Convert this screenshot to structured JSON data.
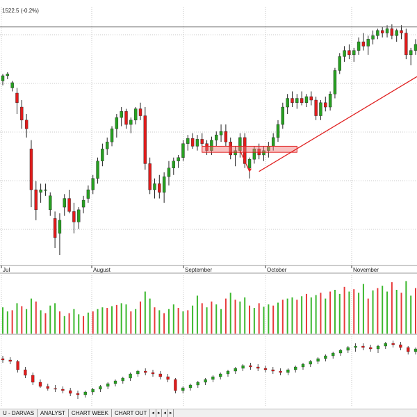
{
  "header": {
    "quote_text": "1522.5 (-0.2%)"
  },
  "chart_data": {
    "type": "candlestick",
    "months": [
      "Jul",
      "August",
      "September",
      "October",
      "November"
    ],
    "price_panel": {
      "ylim": [
        1258,
        1555
      ],
      "horizontal_line": 1532,
      "support_box": [
        1388,
        1395
      ],
      "trend_line_points": [
        [
          94,
          1367
        ],
        [
          180,
          1475
        ]
      ],
      "arrow_points": [
        [
          70,
          1385
        ],
        [
          75,
          1365
        ]
      ],
      "candles": [
        [
          1470,
          1478,
          1465,
          1476
        ],
        [
          1476,
          1480,
          1472,
          1478
        ],
        [
          1462,
          1470,
          1458,
          1468
        ],
        [
          1456,
          1462,
          1432,
          1445
        ],
        [
          1440,
          1448,
          1415,
          1425
        ],
        [
          1425,
          1432,
          1405,
          1415
        ],
        [
          1392,
          1402,
          1325,
          1345
        ],
        [
          1345,
          1355,
          1310,
          1322
        ],
        [
          1342,
          1352,
          1330,
          1345
        ],
        [
          1345,
          1352,
          1338,
          1345
        ],
        [
          1322,
          1342,
          1315,
          1338
        ],
        [
          1312,
          1320,
          1278,
          1290
        ],
        [
          1295,
          1318,
          1270,
          1310
        ],
        [
          1325,
          1340,
          1315,
          1335
        ],
        [
          1335,
          1345,
          1318,
          1320
        ],
        [
          1320,
          1330,
          1295,
          1308
        ],
        [
          1308,
          1325,
          1300,
          1322
        ],
        [
          1325,
          1338,
          1318,
          1333
        ],
        [
          1335,
          1350,
          1330,
          1345
        ],
        [
          1345,
          1362,
          1340,
          1358
        ],
        [
          1358,
          1382,
          1352,
          1378
        ],
        [
          1378,
          1398,
          1372,
          1392
        ],
        [
          1392,
          1405,
          1385,
          1400
        ],
        [
          1400,
          1418,
          1395,
          1415
        ],
        [
          1415,
          1432,
          1405,
          1428
        ],
        [
          1428,
          1440,
          1418,
          1435
        ],
        [
          1435,
          1438,
          1415,
          1420
        ],
        [
          1420,
          1428,
          1410,
          1425
        ],
        [
          1425,
          1440,
          1420,
          1438
        ],
        [
          1438,
          1445,
          1425,
          1430
        ],
        [
          1430,
          1440,
          1368,
          1375
        ],
        [
          1375,
          1382,
          1340,
          1345
        ],
        [
          1345,
          1358,
          1335,
          1352
        ],
        [
          1352,
          1362,
          1335,
          1342
        ],
        [
          1342,
          1365,
          1330,
          1360
        ],
        [
          1360,
          1378,
          1350,
          1370
        ],
        [
          1370,
          1382,
          1362,
          1378
        ],
        [
          1378,
          1385,
          1370,
          1382
        ],
        [
          1382,
          1402,
          1378,
          1398
        ],
        [
          1398,
          1408,
          1390,
          1404
        ],
        [
          1404,
          1410,
          1392,
          1395
        ],
        [
          1395,
          1408,
          1390,
          1403
        ],
        [
          1403,
          1410,
          1395,
          1398
        ],
        [
          1398,
          1402,
          1385,
          1390
        ],
        [
          1390,
          1406,
          1385,
          1402
        ],
        [
          1402,
          1412,
          1395,
          1408
        ],
        [
          1408,
          1420,
          1400,
          1412
        ],
        [
          1412,
          1420,
          1395,
          1400
        ],
        [
          1400,
          1405,
          1380,
          1385
        ],
        [
          1385,
          1395,
          1372,
          1390
        ],
        [
          1390,
          1410,
          1382,
          1405
        ],
        [
          1405,
          1410,
          1370,
          1375
        ],
        [
          1370,
          1382,
          1358,
          1380
        ],
        [
          1380,
          1395,
          1375,
          1392
        ],
        [
          1392,
          1398,
          1380,
          1385
        ],
        [
          1385,
          1395,
          1378,
          1390
        ],
        [
          1390,
          1400,
          1382,
          1395
        ],
        [
          1395,
          1410,
          1390,
          1405
        ],
        [
          1405,
          1425,
          1400,
          1420
        ],
        [
          1420,
          1445,
          1415,
          1440
        ],
        [
          1440,
          1455,
          1432,
          1450
        ],
        [
          1450,
          1458,
          1440,
          1445
        ],
        [
          1445,
          1455,
          1438,
          1450
        ],
        [
          1450,
          1458,
          1442,
          1445
        ],
        [
          1445,
          1455,
          1440,
          1452
        ],
        [
          1452,
          1458,
          1442,
          1448
        ],
        [
          1448,
          1452,
          1425,
          1430
        ],
        [
          1430,
          1448,
          1425,
          1445
        ],
        [
          1445,
          1452,
          1435,
          1440
        ],
        [
          1440,
          1458,
          1436,
          1455
        ],
        [
          1455,
          1485,
          1450,
          1482
        ],
        [
          1482,
          1502,
          1478,
          1498
        ],
        [
          1498,
          1510,
          1492,
          1505
        ],
        [
          1505,
          1512,
          1495,
          1500
        ],
        [
          1500,
          1508,
          1492,
          1505
        ],
        [
          1505,
          1520,
          1500,
          1515
        ],
        [
          1515,
          1525,
          1505,
          1510
        ],
        [
          1510,
          1522,
          1500,
          1518
        ],
        [
          1518,
          1528,
          1512,
          1522
        ],
        [
          1522,
          1530,
          1518,
          1528
        ],
        [
          1528,
          1532,
          1520,
          1525
        ],
        [
          1525,
          1534,
          1520,
          1530
        ],
        [
          1530,
          1535,
          1518,
          1522
        ],
        [
          1522,
          1530,
          1515,
          1528
        ],
        [
          1528,
          1534,
          1518,
          1525
        ],
        [
          1525,
          1530,
          1495,
          1500
        ],
        [
          1500,
          1508,
          1488,
          1505
        ],
        [
          1505,
          1518,
          1500,
          1512
        ]
      ]
    },
    "volume_panel": {
      "ylim": [
        0,
        100
      ],
      "values": [
        45,
        38,
        40,
        52,
        47,
        42,
        60,
        55,
        40,
        35,
        48,
        52,
        38,
        30,
        35,
        42,
        33,
        30,
        36,
        38,
        42,
        45,
        44,
        47,
        49,
        52,
        50,
        38,
        42,
        55,
        72,
        60,
        45,
        40,
        35,
        42,
        50,
        44,
        38,
        40,
        48,
        65,
        52,
        45,
        55,
        50,
        42,
        60,
        70,
        58,
        55,
        62,
        48,
        44,
        52,
        46,
        50,
        48,
        53,
        58,
        60,
        62,
        58,
        64,
        68,
        62,
        66,
        70,
        60,
        72,
        75,
        68,
        80,
        72,
        76,
        70,
        85,
        60,
        74,
        78,
        82,
        72,
        88,
        75,
        70,
        90,
        65,
        78
      ]
    },
    "indicator_panel": {
      "ylim": [
        0,
        100
      ],
      "candles": [
        [
          68,
          72,
          62,
          66
        ],
        [
          66,
          70,
          60,
          64
        ],
        [
          64,
          66,
          48,
          52
        ],
        [
          52,
          56,
          40,
          44
        ],
        [
          44,
          48,
          30,
          34
        ],
        [
          34,
          38,
          26,
          28
        ],
        [
          28,
          32,
          22,
          25
        ],
        [
          25,
          30,
          20,
          24
        ],
        [
          24,
          28,
          18,
          22
        ],
        [
          22,
          26,
          14,
          18
        ],
        [
          18,
          22,
          10,
          16
        ],
        [
          16,
          22,
          12,
          20
        ],
        [
          20,
          26,
          16,
          24
        ],
        [
          24,
          30,
          20,
          28
        ],
        [
          28,
          34,
          24,
          32
        ],
        [
          32,
          38,
          28,
          36
        ],
        [
          36,
          42,
          32,
          40
        ],
        [
          40,
          48,
          36,
          46
        ],
        [
          46,
          52,
          42,
          50
        ],
        [
          50,
          54,
          44,
          48
        ],
        [
          48,
          52,
          42,
          46
        ],
        [
          46,
          50,
          38,
          42
        ],
        [
          42,
          46,
          34,
          38
        ],
        [
          38,
          40,
          18,
          22
        ],
        [
          22,
          28,
          18,
          26
        ],
        [
          26,
          32,
          22,
          30
        ],
        [
          30,
          36,
          26,
          34
        ],
        [
          34,
          40,
          30,
          38
        ],
        [
          38,
          44,
          34,
          42
        ],
        [
          42,
          48,
          38,
          46
        ],
        [
          46,
          52,
          42,
          50
        ],
        [
          50,
          56,
          46,
          54
        ],
        [
          54,
          60,
          50,
          58
        ],
        [
          58,
          62,
          52,
          56
        ],
        [
          56,
          60,
          50,
          54
        ],
        [
          54,
          58,
          48,
          52
        ],
        [
          52,
          56,
          46,
          50
        ],
        [
          50,
          54,
          44,
          48
        ],
        [
          48,
          54,
          44,
          52
        ],
        [
          52,
          58,
          48,
          56
        ],
        [
          56,
          62,
          52,
          60
        ],
        [
          60,
          66,
          56,
          64
        ],
        [
          64,
          70,
          60,
          68
        ],
        [
          68,
          74,
          64,
          72
        ],
        [
          72,
          78,
          68,
          76
        ],
        [
          76,
          82,
          72,
          80
        ],
        [
          80,
          86,
          76,
          84
        ],
        [
          84,
          90,
          78,
          86
        ],
        [
          86,
          90,
          80,
          84
        ],
        [
          84,
          88,
          78,
          82
        ],
        [
          82,
          88,
          76,
          86
        ],
        [
          86,
          92,
          82,
          90
        ],
        [
          90,
          94,
          84,
          88
        ],
        [
          88,
          92,
          80,
          84
        ],
        [
          84,
          86,
          74,
          78
        ],
        [
          78,
          84,
          74,
          82
        ]
      ]
    }
  },
  "tabs": [
    {
      "label": "U - DARVAS"
    },
    {
      "label": "ANALYST"
    },
    {
      "label": "CHART WEEK"
    },
    {
      "label": "CHART OUT"
    }
  ],
  "tab_nav": [
    {
      "label": "◂"
    },
    {
      "label": "▸"
    },
    {
      "label": "◂"
    },
    {
      "label": "▸"
    }
  ],
  "colors": {
    "up": "#27a021",
    "down": "#e01b1b",
    "volume_up": "#3cb82e",
    "volume_down": "#e83a3a",
    "trend": "#e02020",
    "level": "#707070",
    "grid": "#c8c8c8"
  }
}
